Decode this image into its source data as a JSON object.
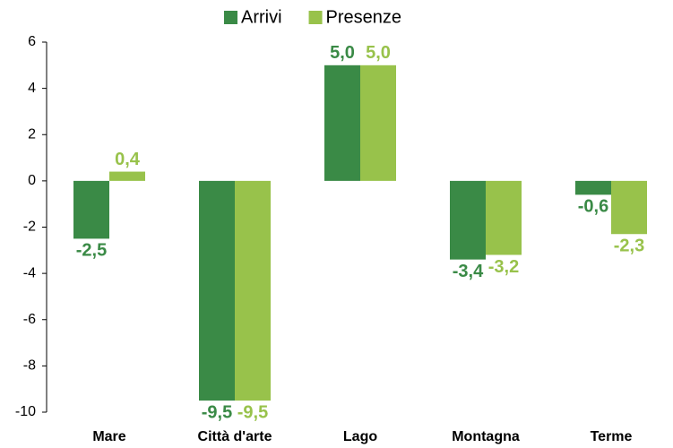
{
  "chart_data": {
    "type": "bar",
    "categories": [
      "Mare",
      "Città d'arte",
      "Lago",
      "Montagna",
      "Terme"
    ],
    "series": [
      {
        "name": "Arrivi",
        "color": "#3a8a46",
        "values": [
          -2.5,
          -9.5,
          5.0,
          -3.4,
          -0.6
        ],
        "value_labels": [
          "-2,5",
          "-9,5",
          "5,0",
          "-3,4",
          "-0,6"
        ]
      },
      {
        "name": "Presenze",
        "color": "#98c24b",
        "values": [
          0.4,
          -9.5,
          5.0,
          -3.2,
          -2.3
        ],
        "value_labels": [
          "0,4",
          "-9,5",
          "5,0",
          "-3,2",
          "-2,3"
        ]
      }
    ],
    "ylim": [
      -10,
      6
    ],
    "yticks": [
      -10,
      -8,
      -6,
      -4,
      -2,
      0,
      2,
      4,
      6
    ],
    "grid": false,
    "legend": "top"
  }
}
